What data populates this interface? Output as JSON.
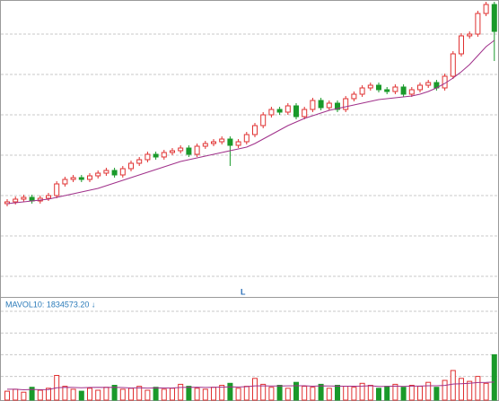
{
  "chart_data": {
    "type": "candlestick",
    "marker_label": "L",
    "volume_label": "MAVOL10: 1834573.20 ↓",
    "up_color": "#e03030",
    "down_color": "#1a9a2a",
    "ma_color": "#a0308a",
    "grid": true,
    "ylim": [
      0,
      330
    ],
    "grid_values": [
      22,
      67,
      112,
      157,
      202,
      247,
      292
    ],
    "open": [
      103,
      105,
      108,
      110,
      106,
      109,
      112,
      125,
      130,
      132,
      130,
      134,
      137,
      140,
      135,
      142,
      148,
      152,
      158,
      155,
      160,
      162,
      165,
      158,
      167,
      170,
      172,
      175,
      168,
      172,
      180,
      190,
      202,
      208,
      205,
      212,
      200,
      208,
      218,
      210,
      215,
      208,
      220,
      225,
      232,
      235,
      230,
      228,
      233,
      225,
      230,
      235,
      238,
      232,
      245,
      270,
      290,
      292,
      315,
      325
    ],
    "close": [
      105,
      108,
      110,
      106,
      109,
      112,
      125,
      130,
      132,
      130,
      134,
      137,
      140,
      135,
      142,
      148,
      152,
      158,
      155,
      160,
      162,
      165,
      158,
      167,
      170,
      172,
      175,
      168,
      172,
      180,
      190,
      202,
      208,
      205,
      212,
      200,
      208,
      218,
      210,
      215,
      208,
      220,
      225,
      232,
      235,
      230,
      228,
      233,
      225,
      230,
      235,
      238,
      232,
      245,
      270,
      290,
      292,
      315,
      325,
      295
    ],
    "high": [
      108,
      111,
      113,
      113,
      112,
      115,
      128,
      133,
      135,
      135,
      137,
      140,
      143,
      143,
      145,
      151,
      155,
      161,
      161,
      163,
      165,
      168,
      168,
      170,
      173,
      175,
      178,
      178,
      175,
      183,
      193,
      205,
      211,
      211,
      215,
      215,
      211,
      221,
      221,
      218,
      218,
      223,
      228,
      235,
      238,
      238,
      233,
      236,
      236,
      233,
      238,
      241,
      241,
      248,
      273,
      293,
      295,
      318,
      328,
      328
    ],
    "low": [
      100,
      102,
      105,
      103,
      103,
      106,
      109,
      122,
      127,
      127,
      127,
      131,
      134,
      132,
      132,
      139,
      145,
      149,
      152,
      152,
      157,
      159,
      155,
      155,
      164,
      167,
      169,
      145,
      165,
      169,
      177,
      187,
      199,
      202,
      202,
      197,
      197,
      205,
      207,
      207,
      205,
      205,
      217,
      222,
      229,
      227,
      225,
      225,
      222,
      222,
      227,
      232,
      229,
      229,
      242,
      267,
      287,
      289,
      312,
      262
    ],
    "ma": [
      103,
      104,
      105,
      106,
      107,
      108,
      110,
      112,
      114,
      116,
      118,
      120,
      123,
      126,
      129,
      132,
      135,
      138,
      141,
      144,
      147,
      150,
      152,
      154,
      156,
      158,
      160,
      162,
      164,
      166,
      170,
      175,
      180,
      185,
      190,
      194,
      198,
      201,
      204,
      207,
      209,
      211,
      213,
      215,
      217,
      219,
      220,
      221,
      222,
      223,
      225,
      228,
      232,
      237,
      243,
      250,
      258,
      268,
      278,
      285
    ],
    "vol_ylim": [
      0,
      9000000
    ],
    "vol_grid_values": [
      2400000,
      4600000,
      6800000,
      9000000
    ],
    "volume": [
      900000,
      1100000,
      800000,
      1300000,
      1000000,
      1200000,
      2500000,
      1400000,
      1100000,
      900000,
      1200000,
      1000000,
      1300000,
      1500000,
      1100000,
      1200000,
      1400000,
      1000000,
      1300000,
      1100000,
      1200000,
      1600000,
      1400000,
      1200000,
      1100000,
      1300000,
      1500000,
      1700000,
      1200000,
      1400000,
      2200000,
      1600000,
      1300000,
      1500000,
      1200000,
      1800000,
      1400000,
      1300000,
      1600000,
      1200000,
      1500000,
      1400000,
      1300000,
      1700000,
      1500000,
      1200000,
      1400000,
      1600000,
      1300000,
      1500000,
      1400000,
      1800000,
      1300000,
      2000000,
      3000000,
      2200000,
      1900000,
      2400000,
      1700000,
      4600000
    ],
    "mavol": [
      1100000,
      1100000,
      1050000,
      1080000,
      1060000,
      1070000,
      1250000,
      1290000,
      1280000,
      1250000,
      1280000,
      1290000,
      1280000,
      1290000,
      1270000,
      1230000,
      1250000,
      1220000,
      1240000,
      1230000,
      1230000,
      1280000,
      1290000,
      1310000,
      1280000,
      1300000,
      1320000,
      1340000,
      1330000,
      1360000,
      1440000,
      1440000,
      1430000,
      1430000,
      1440000,
      1460000,
      1450000,
      1410000,
      1440000,
      1430000,
      1420000,
      1410000,
      1410000,
      1420000,
      1450000,
      1390000,
      1390000,
      1420000,
      1390000,
      1420000,
      1420000,
      1460000,
      1460000,
      1490000,
      1630000,
      1660000,
      1700000,
      1780000,
      1790000,
      1834573.2
    ]
  }
}
